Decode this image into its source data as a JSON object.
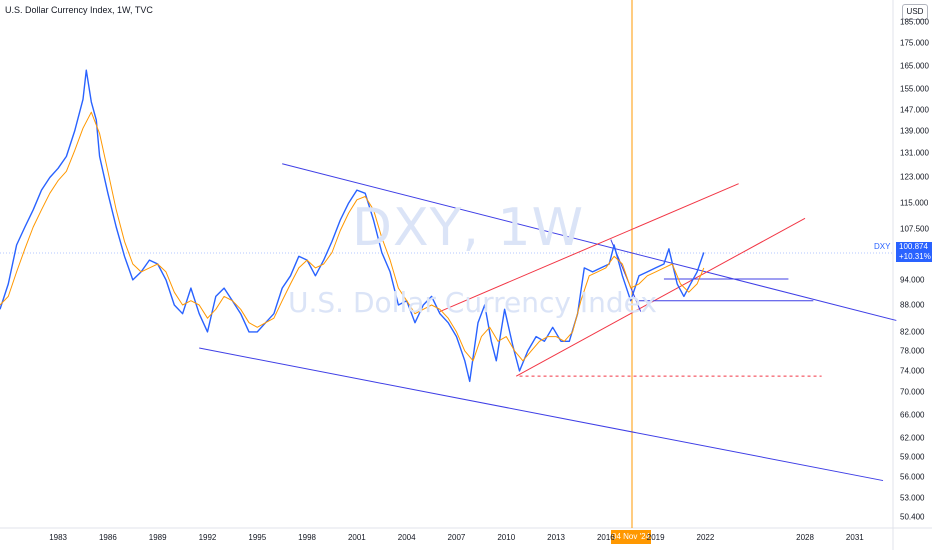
{
  "title": "U.S. Dollar Currency Index, 1W, TVC",
  "watermark": {
    "symbol": "DXY, 1W",
    "name": "U.S. Dollar Currency Index"
  },
  "currency": "USD",
  "symbol_tag": "DXY",
  "last_price": "100.874",
  "change_pct": "+10.31%",
  "crosshair_date": "04 Nov '24",
  "colors": {
    "price": "#2962ff",
    "ma": "#ff9800",
    "channel": "#3f3fe6",
    "uptrend": "#f23645",
    "cursor": "#ff9800",
    "price_line": "#2962ff"
  },
  "chart_data": {
    "type": "line",
    "title": "U.S. Dollar Currency Index, 1W, TVC",
    "x_label": "",
    "y_label": "",
    "y_scale": "log",
    "ylim": [
      49,
      196
    ],
    "xlim": [
      1980.0,
      2033.8
    ],
    "x_ticks": [
      "1983",
      "1986",
      "1989",
      "1992",
      "1995",
      "1998",
      "2001",
      "2004",
      "2007",
      "2010",
      "2013",
      "2016",
      "2019",
      "2022",
      "2028",
      "2031"
    ],
    "y_ticks": [
      "50.400",
      "53.000",
      "56.000",
      "59.000",
      "62.000",
      "66.000",
      "70.000",
      "74.000",
      "78.000",
      "82.000",
      "88.000",
      "94.000",
      "100.874",
      "107.500",
      "115.000",
      "123.000",
      "131.000",
      "139.000",
      "147.000",
      "155.000",
      "165.000",
      "175.000",
      "185.000"
    ],
    "series": [
      {
        "values": [
          [
            1980.0,
            87
          ],
          [
            1980.5,
            93
          ],
          [
            1981.0,
            103
          ],
          [
            1981.5,
            108
          ],
          [
            1982.0,
            113
          ],
          [
            1982.5,
            119
          ],
          [
            1983.0,
            123
          ],
          [
            1983.5,
            126
          ],
          [
            1984.0,
            130
          ],
          [
            1984.5,
            139
          ],
          [
            1985.0,
            151
          ],
          [
            1985.2,
            163
          ],
          [
            1985.5,
            150
          ],
          [
            1985.8,
            143
          ],
          [
            1986.0,
            130
          ],
          [
            1986.5,
            118
          ],
          [
            1987.0,
            108
          ],
          [
            1987.5,
            100
          ],
          [
            1988.0,
            94
          ],
          [
            1988.5,
            96
          ],
          [
            1989.0,
            99
          ],
          [
            1989.5,
            98
          ],
          [
            1990.0,
            94
          ],
          [
            1990.5,
            88
          ],
          [
            1991.0,
            86
          ],
          [
            1991.5,
            92
          ],
          [
            1992.0,
            86
          ],
          [
            1992.5,
            82
          ],
          [
            1993.0,
            90
          ],
          [
            1993.5,
            92
          ],
          [
            1994.0,
            89
          ],
          [
            1994.5,
            86
          ],
          [
            1995.0,
            82
          ],
          [
            1995.5,
            82
          ],
          [
            1996.0,
            84
          ],
          [
            1996.5,
            86
          ],
          [
            1997.0,
            92
          ],
          [
            1997.5,
            95
          ],
          [
            1998.0,
            100
          ],
          [
            1998.5,
            99
          ],
          [
            1999.0,
            95
          ],
          [
            1999.5,
            99
          ],
          [
            2000.0,
            104
          ],
          [
            2000.5,
            110
          ],
          [
            2001.0,
            115
          ],
          [
            2001.5,
            119
          ],
          [
            2002.0,
            118
          ],
          [
            2002.5,
            110
          ],
          [
            2003.0,
            101
          ],
          [
            2003.5,
            96
          ],
          [
            2004.0,
            88
          ],
          [
            2004.5,
            89
          ],
          [
            2005.0,
            84
          ],
          [
            2005.5,
            88
          ],
          [
            2006.0,
            90
          ],
          [
            2006.5,
            86
          ],
          [
            2007.0,
            84
          ],
          [
            2007.5,
            81
          ],
          [
            2008.0,
            76
          ],
          [
            2008.3,
            72
          ],
          [
            2008.8,
            84
          ],
          [
            2009.2,
            88
          ],
          [
            2009.6,
            80
          ],
          [
            2009.9,
            76
          ],
          [
            2010.4,
            87
          ],
          [
            2010.9,
            79
          ],
          [
            2011.3,
            74
          ],
          [
            2011.8,
            78
          ],
          [
            2012.3,
            81
          ],
          [
            2012.8,
            80
          ],
          [
            2013.3,
            83
          ],
          [
            2013.8,
            80
          ],
          [
            2014.3,
            80
          ],
          [
            2014.8,
            86
          ],
          [
            2015.2,
            97
          ],
          [
            2015.7,
            96
          ],
          [
            2016.2,
            97
          ],
          [
            2016.7,
            98
          ],
          [
            2017.0,
            103
          ],
          [
            2017.5,
            95
          ],
          [
            2018.0,
            89
          ],
          [
            2018.5,
            95
          ],
          [
            2019.0,
            96
          ],
          [
            2019.5,
            97
          ],
          [
            2020.0,
            98
          ],
          [
            2020.3,
            102
          ],
          [
            2020.8,
            93
          ],
          [
            2021.2,
            90
          ],
          [
            2021.6,
            93
          ],
          [
            2022.0,
            96
          ],
          [
            2022.4,
            101
          ]
        ]
      },
      {
        "values": [
          [
            1980.0,
            88
          ],
          [
            1980.5,
            90
          ],
          [
            1981.0,
            96
          ],
          [
            1981.5,
            102
          ],
          [
            1982.0,
            108
          ],
          [
            1982.5,
            113
          ],
          [
            1983.0,
            118
          ],
          [
            1983.5,
            122
          ],
          [
            1984.0,
            125
          ],
          [
            1984.5,
            132
          ],
          [
            1985.0,
            140
          ],
          [
            1985.5,
            146
          ],
          [
            1986.0,
            138
          ],
          [
            1986.5,
            125
          ],
          [
            1987.0,
            113
          ],
          [
            1987.5,
            104
          ],
          [
            1988.0,
            98
          ],
          [
            1988.5,
            96
          ],
          [
            1989.0,
            97
          ],
          [
            1989.5,
            98
          ],
          [
            1990.0,
            96
          ],
          [
            1990.5,
            91
          ],
          [
            1991.0,
            88
          ],
          [
            1991.5,
            89
          ],
          [
            1992.0,
            88
          ],
          [
            1992.5,
            85
          ],
          [
            1993.0,
            87
          ],
          [
            1993.5,
            90
          ],
          [
            1994.0,
            89
          ],
          [
            1994.5,
            87
          ],
          [
            1995.0,
            84
          ],
          [
            1995.5,
            83
          ],
          [
            1996.0,
            84
          ],
          [
            1996.5,
            85
          ],
          [
            1997.0,
            89
          ],
          [
            1997.5,
            93
          ],
          [
            1998.0,
            97
          ],
          [
            1998.5,
            99
          ],
          [
            1999.0,
            97
          ],
          [
            1999.5,
            98
          ],
          [
            2000.0,
            101
          ],
          [
            2000.5,
            107
          ],
          [
            2001.0,
            112
          ],
          [
            2001.5,
            116
          ],
          [
            2002.0,
            117
          ],
          [
            2002.5,
            113
          ],
          [
            2003.0,
            105
          ],
          [
            2003.5,
            99
          ],
          [
            2004.0,
            92
          ],
          [
            2004.5,
            89
          ],
          [
            2005.0,
            86
          ],
          [
            2005.5,
            87
          ],
          [
            2006.0,
            88
          ],
          [
            2006.5,
            87
          ],
          [
            2007.0,
            85
          ],
          [
            2007.5,
            82
          ],
          [
            2008.0,
            78
          ],
          [
            2008.5,
            76
          ],
          [
            2009.0,
            81
          ],
          [
            2009.5,
            83
          ],
          [
            2010.0,
            80
          ],
          [
            2010.5,
            81
          ],
          [
            2011.0,
            78
          ],
          [
            2011.5,
            76
          ],
          [
            2012.0,
            78
          ],
          [
            2012.5,
            80
          ],
          [
            2013.0,
            81
          ],
          [
            2013.5,
            81
          ],
          [
            2014.0,
            80
          ],
          [
            2014.5,
            82
          ],
          [
            2015.0,
            89
          ],
          [
            2015.5,
            95
          ],
          [
            2016.0,
            96
          ],
          [
            2016.5,
            97
          ],
          [
            2017.0,
            100
          ],
          [
            2017.5,
            98
          ],
          [
            2018.0,
            92
          ],
          [
            2018.5,
            93
          ],
          [
            2019.0,
            95
          ],
          [
            2019.5,
            96
          ],
          [
            2020.0,
            97
          ],
          [
            2020.5,
            98
          ],
          [
            2021.0,
            93
          ],
          [
            2021.5,
            91
          ],
          [
            2022.0,
            93
          ],
          [
            2022.4,
            97
          ]
        ]
      }
    ]
  }
}
